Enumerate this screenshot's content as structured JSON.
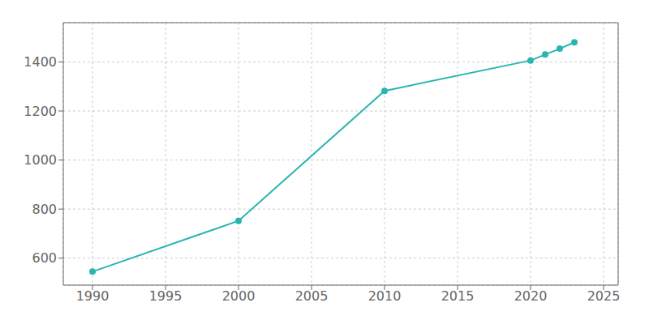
{
  "chart_data": {
    "type": "line",
    "x": [
      1990,
      2000,
      2010,
      2020,
      2021,
      2022,
      2023
    ],
    "values": [
      545,
      752,
      1282,
      1406,
      1430,
      1454,
      1480
    ],
    "color": "#2ab5b0",
    "marker": "circle",
    "xlim": [
      1988,
      2026
    ],
    "xticks": [
      1990,
      1995,
      2000,
      2005,
      2010,
      2015,
      2020,
      2025
    ],
    "ylim": [
      490,
      1560
    ],
    "yticks": [
      600,
      800,
      1000,
      1200,
      1400
    ],
    "grid": true
  }
}
